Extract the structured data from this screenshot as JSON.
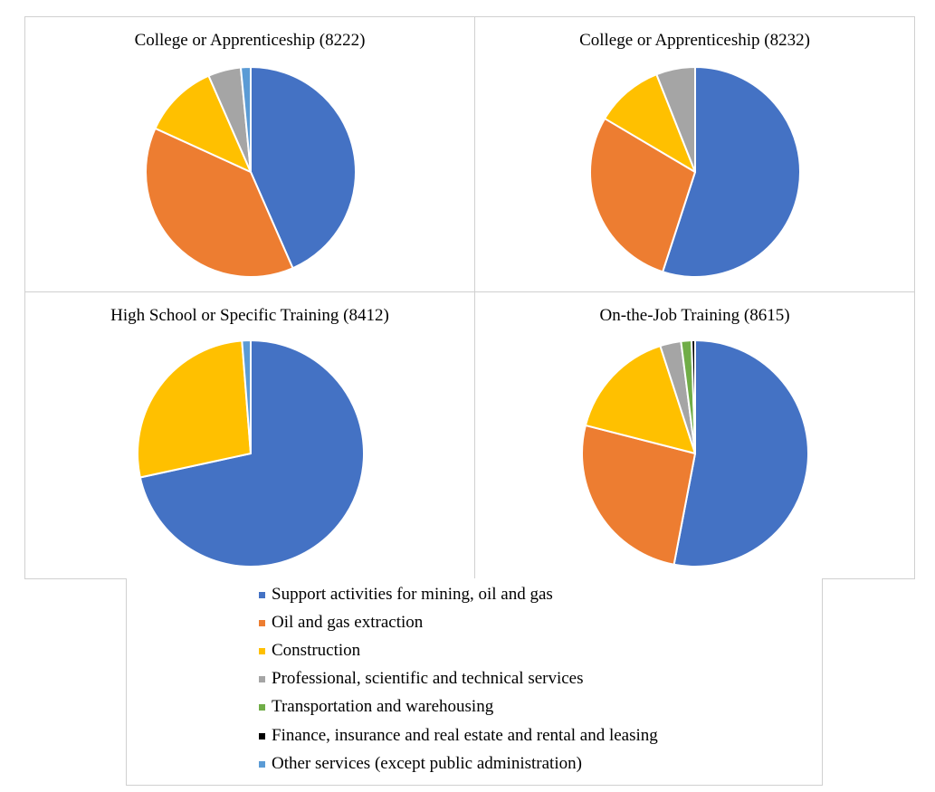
{
  "chart_data": [
    {
      "type": "pie",
      "title": "College or Apprenticeship (8222)",
      "categories": [
        "Support activities for mining, oil and gas",
        "Oil and gas extraction",
        "Construction",
        "Professional, scientific and technical services",
        "Transportation and warehousing",
        "Finance, insurance and real estate and rental and leasing",
        "Other services (except public administration)"
      ],
      "values": [
        43,
        38,
        11.5,
        5,
        0,
        0,
        1.5
      ]
    },
    {
      "type": "pie",
      "title": "College or Apprenticeship (8232)",
      "categories": [
        "Support activities for mining, oil and gas",
        "Oil and gas extraction",
        "Construction",
        "Professional, scientific and technical services",
        "Transportation and warehousing",
        "Finance, insurance and real estate and rental and leasing",
        "Other services (except public administration)"
      ],
      "values": [
        55,
        28.5,
        10.5,
        6,
        0,
        0,
        0
      ]
    },
    {
      "type": "pie",
      "title": "High School or Specific Training (8412)",
      "categories": [
        "Support activities for mining, oil and gas",
        "Oil and gas extraction",
        "Construction",
        "Professional, scientific and technical services",
        "Transportation and warehousing",
        "Finance, insurance and real estate and rental and leasing",
        "Other services (except public administration)"
      ],
      "values": [
        58,
        0,
        22,
        0,
        0,
        0,
        1
      ]
    },
    {
      "type": "pie",
      "title": "On-the-Job Training (8615)",
      "categories": [
        "Support activities for mining, oil and gas",
        "Oil and gas extraction",
        "Construction",
        "Professional, scientific and technical services",
        "Transportation and warehousing",
        "Finance, insurance and real estate and rental and leasing",
        "Other services (except public administration)"
      ],
      "values": [
        53,
        26,
        16,
        3,
        1.5,
        0.5,
        0
      ]
    }
  ],
  "legend": {
    "items": [
      {
        "label": "Support activities for mining, oil and gas",
        "color": "#4472C4"
      },
      {
        "label": "Oil and gas extraction",
        "color": "#ED7D31"
      },
      {
        "label": "Construction",
        "color": "#FFC000"
      },
      {
        "label": "Professional, scientific and technical services",
        "color": "#A5A5A5"
      },
      {
        "label": "Transportation and warehousing",
        "color": "#70AD47"
      },
      {
        "label": "Finance, insurance and real estate and rental and leasing",
        "color": "#000000"
      },
      {
        "label": "Other services (except public administration)",
        "color": "#5B9BD5"
      }
    ]
  }
}
